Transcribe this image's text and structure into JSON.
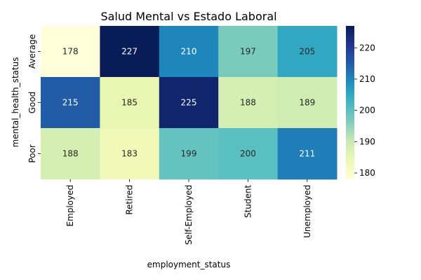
{
  "chart_data": {
    "type": "heatmap",
    "title": "Salud Mental vs Estado Laboral",
    "xlabel": "employment_status",
    "ylabel": "mental_health_status",
    "x_categories": [
      "Employed",
      "Retired",
      "Self-Employed",
      "Student",
      "Unemployed"
    ],
    "y_categories": [
      "Average",
      "Good",
      "Poor"
    ],
    "values": [
      [
        178,
        227,
        210,
        197,
        205
      ],
      [
        215,
        185,
        225,
        188,
        189
      ],
      [
        188,
        183,
        199,
        200,
        211
      ]
    ],
    "colorscale": "YlGnBu",
    "colorbar_range": [
      178,
      227
    ],
    "colorbar_ticks": [
      180,
      190,
      200,
      210,
      220
    ]
  }
}
